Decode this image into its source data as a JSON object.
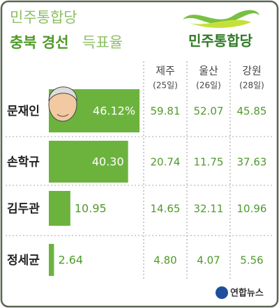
{
  "header": {
    "title": "민주통합당",
    "subtitle_bold": "충북 경선",
    "subtitle_rest": "득표율",
    "logo": "민주통합당"
  },
  "chart_data": {
    "type": "bar",
    "orientation": "horizontal",
    "categories": [
      "문재인",
      "손학규",
      "김두관",
      "정세균"
    ],
    "values": [
      46.12,
      40.3,
      10.95,
      2.64
    ],
    "value_labels": [
      "46.12%",
      "40.30",
      "10.95",
      "2.64"
    ],
    "color": "#6cb33e",
    "xlim": [
      0,
      50
    ]
  },
  "table": {
    "columns": [
      {
        "region": "제주",
        "date": "(25일)",
        "values": [
          "59.81",
          "20.74",
          "14.65",
          "4.80"
        ]
      },
      {
        "region": "울산",
        "date": "(26일)",
        "values": [
          "52.07",
          "11.75",
          "32.11",
          "4.07"
        ]
      },
      {
        "region": "강원",
        "date": "(28일)",
        "values": [
          "45.85",
          "37.63",
          "10.96",
          "5.56"
        ]
      }
    ]
  },
  "footer": {
    "source": "연합뉴스"
  }
}
